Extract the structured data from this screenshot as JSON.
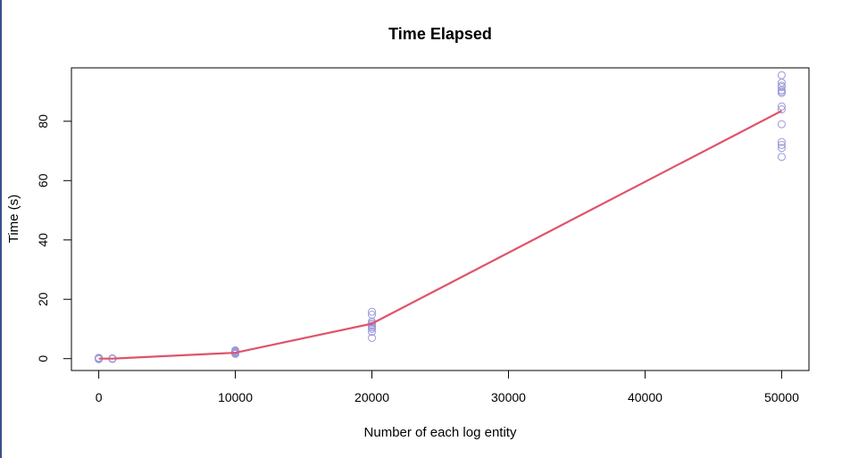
{
  "chart_data": {
    "type": "scatter",
    "title": "Time Elapsed",
    "xlabel": "Number of each log entity",
    "ylabel": "Time (s)",
    "xlim": [
      -2000,
      52000
    ],
    "ylim": [
      -4,
      98
    ],
    "x_ticks": [
      0,
      10000,
      20000,
      30000,
      40000,
      50000
    ],
    "y_ticks": [
      0,
      20,
      40,
      60,
      80
    ],
    "grid": false,
    "legend": "none",
    "colors": {
      "points": "#9a9ad9",
      "line": "#df536b",
      "frame": "#000000"
    },
    "series": [
      {
        "kind": "points",
        "x": [
          0,
          0,
          0,
          0,
          0,
          0,
          0,
          0,
          1000,
          1000,
          1000,
          1000,
          10000,
          10000,
          10000,
          10000,
          10000,
          10000,
          10000,
          10000,
          20000,
          20000,
          20000,
          20000,
          20000,
          20000,
          20000,
          20000,
          20000,
          20000,
          50000,
          50000,
          50000,
          50000,
          50000,
          50000,
          50000,
          50000,
          50000,
          50000,
          50000,
          50000,
          50000,
          50000
        ],
        "y": [
          0,
          0.2,
          -0.2,
          0.3,
          0,
          0.1,
          -0.1,
          0.2,
          0,
          0.1,
          -0.1,
          0,
          2.8,
          2.4,
          2.2,
          2.0,
          1.8,
          1.6,
          2.5,
          2.1,
          15.8,
          14.8,
          12.5,
          12.0,
          11.5,
          11.0,
          10.5,
          10.0,
          9.0,
          7.0,
          95.5,
          93.0,
          92.0,
          91.5,
          90.5,
          90.0,
          89.5,
          85.0,
          84.0,
          79.0,
          73.0,
          72.0,
          71.0,
          68.0
        ]
      },
      {
        "kind": "line",
        "x": [
          0,
          1000,
          10000,
          20000,
          50000
        ],
        "y": [
          0,
          0,
          2,
          11.8,
          83.5
        ]
      }
    ]
  }
}
